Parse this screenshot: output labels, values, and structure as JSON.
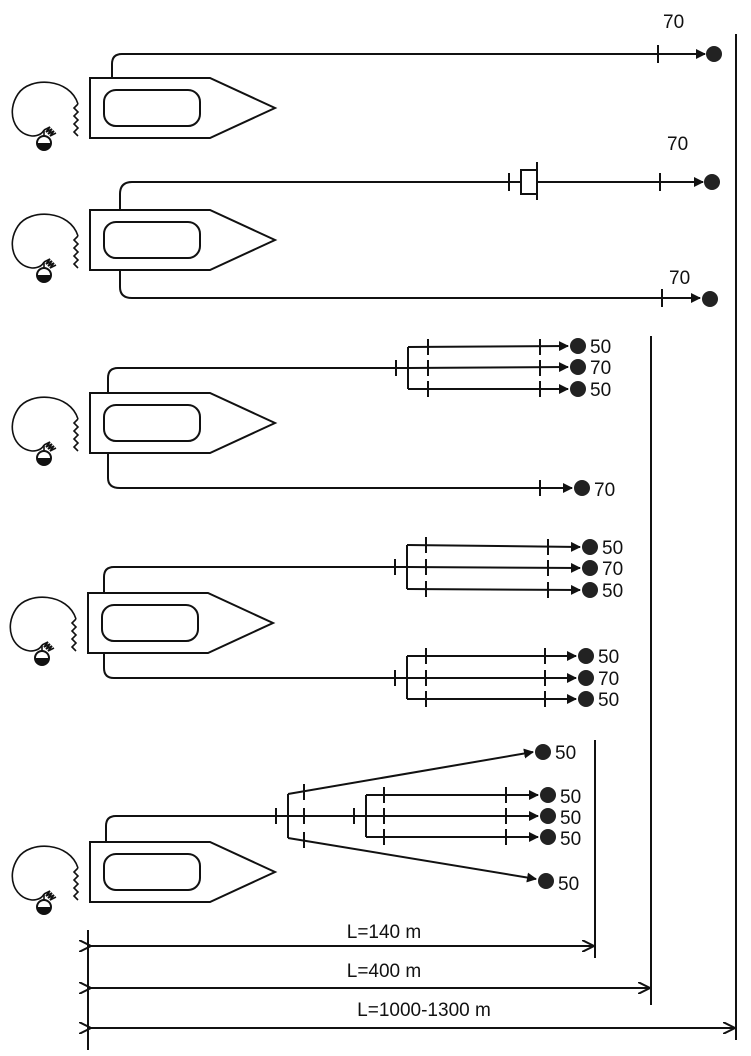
{
  "hoses": {
    "diagram1": {
      "nozzle1": "70"
    },
    "diagram2": {
      "nozzle1": "70",
      "nozzle2": "70"
    },
    "diagram3": {
      "nozzle1": "50",
      "nozzle2": "70",
      "nozzle3": "50",
      "nozzle4": "70"
    },
    "diagram4": {
      "nozzle1": "50",
      "nozzle2": "70",
      "nozzle3": "50",
      "nozzle4": "50",
      "nozzle5": "70",
      "nozzle6": "50"
    },
    "diagram5": {
      "nozzle1": "50",
      "nozzle2": "50",
      "nozzle3": "50",
      "nozzle4": "50",
      "nozzle5": "50"
    }
  },
  "distances": {
    "d1": "L=140 m",
    "d2": "L=400 m",
    "d3": "L=1000-1300 m"
  }
}
